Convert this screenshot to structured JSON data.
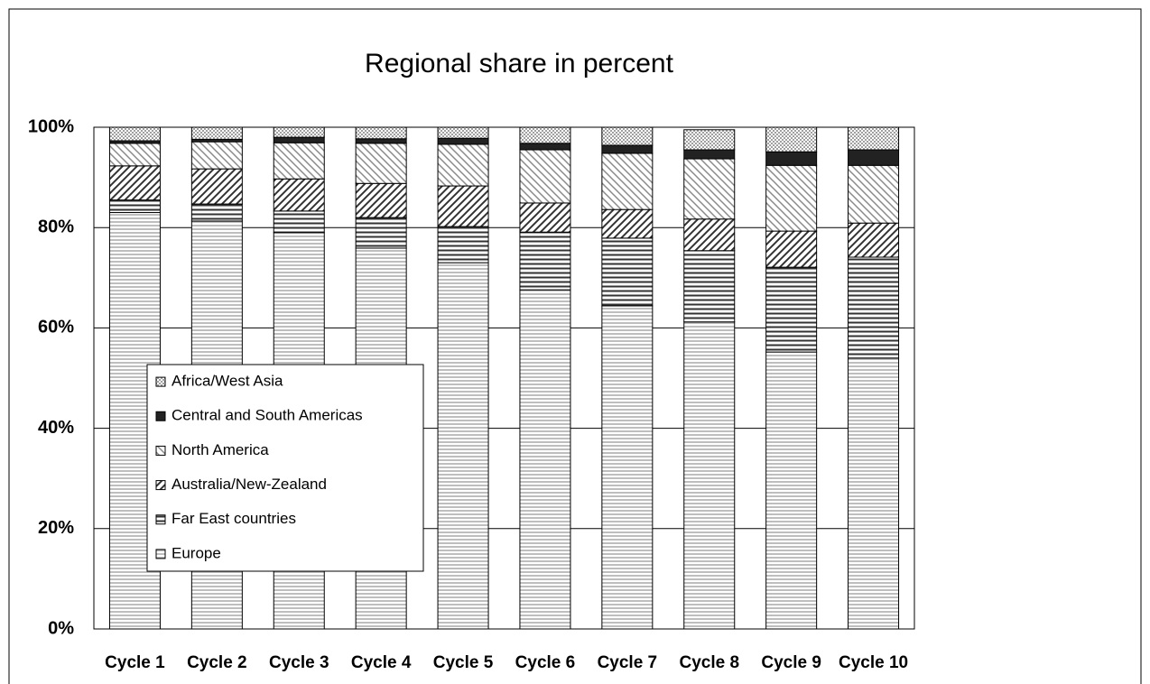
{
  "chart_data": {
    "type": "stacked-bar",
    "title": "Regional share in percent",
    "categories": [
      "Cycle 1",
      "Cycle 2",
      "Cycle 3",
      "Cycle 4",
      "Cycle 5",
      "Cycle 6",
      "Cycle 7",
      "Cycle 8",
      "Cycle 9",
      "Cycle 10"
    ],
    "series": [
      {
        "name": "Europe",
        "color": "#9a9a9a",
        "pattern": "horizontal",
        "values": [
          83.0,
          81.3,
          79.0,
          75.9,
          73.0,
          67.6,
          64.4,
          61.2,
          55.2,
          54.0
        ]
      },
      {
        "name": "Far East countries",
        "color": "#333333",
        "pattern": "horizontal-dense",
        "values": [
          2.5,
          3.4,
          4.3,
          6.1,
          7.2,
          11.5,
          13.5,
          14.2,
          16.9,
          20.1
        ]
      },
      {
        "name": "Australia/New-Zealand",
        "color": "#333333",
        "pattern": "diagonal",
        "values": [
          6.8,
          7.0,
          6.4,
          6.8,
          8.1,
          5.8,
          5.7,
          6.3,
          7.2,
          6.8
        ]
      },
      {
        "name": "North America",
        "color": "#8a8a8a",
        "pattern": "back-diagonal",
        "values": [
          4.5,
          5.4,
          7.2,
          8.0,
          8.3,
          10.6,
          11.2,
          12.0,
          13.1,
          11.5
        ]
      },
      {
        "name": "Central and South Americas",
        "color": "#222222",
        "pattern": "solid",
        "values": [
          0.5,
          0.5,
          1.1,
          0.9,
          1.2,
          1.3,
          1.6,
          1.8,
          2.7,
          3.1
        ]
      },
      {
        "name": "Africa/West Asia",
        "color": "#a0a0a0",
        "pattern": "checker",
        "values": [
          2.7,
          2.4,
          2.0,
          2.3,
          2.2,
          3.2,
          3.6,
          4.0,
          4.9,
          4.5
        ]
      }
    ],
    "ylim": [
      0,
      100
    ],
    "yticks": [
      {
        "value": 0,
        "label": "0%"
      },
      {
        "value": 20,
        "label": "20%"
      },
      {
        "value": 40,
        "label": "40%"
      },
      {
        "value": 60,
        "label": "60%"
      },
      {
        "value": 80,
        "label": "80%"
      },
      {
        "value": 100,
        "label": "100%"
      }
    ],
    "grid": true,
    "legend": "lower left"
  }
}
